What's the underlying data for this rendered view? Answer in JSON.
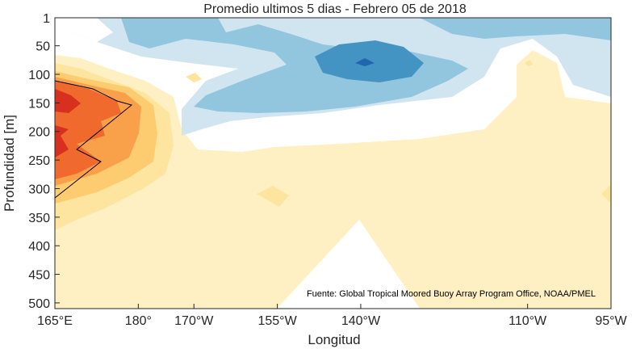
{
  "chart_data": {
    "type": "heatmap",
    "title": "Promedio ultimos 5 dias - Febrero 05 de 2018",
    "xlabel": "Longitud",
    "ylabel": "Profundidad [m]",
    "x_ticks": [
      {
        "lon": 165,
        "label": "165°E"
      },
      {
        "lon": 180,
        "label": "180°"
      },
      {
        "lon": 190,
        "label": "170°W"
      },
      {
        "lon": 205,
        "label": "155°W"
      },
      {
        "lon": 220,
        "label": "140°W"
      },
      {
        "lon": 250,
        "label": "110°W"
      },
      {
        "lon": 265,
        "label": "95°W"
      }
    ],
    "y_ticks": [
      1,
      50,
      100,
      150,
      200,
      250,
      300,
      350,
      400,
      450,
      500
    ],
    "xlim": [
      165,
      265
    ],
    "ylim": [
      1,
      510
    ],
    "annotation": "Fuente: Global Tropical Moored Buoy Array Program Office, NOAA/PMEL",
    "colors": {
      "cold4": "#2166ac",
      "cold3": "#4393c3",
      "cold2": "#92c5de",
      "cold1": "#d1e5f0",
      "neutral": "#ffffff",
      "warm1": "#fef0c2",
      "warm2": "#fde5a0",
      "warm3": "#fdcc70",
      "warm4": "#f9a04a",
      "warm5": "#f06a2e",
      "warm6": "#d7301f"
    }
  }
}
